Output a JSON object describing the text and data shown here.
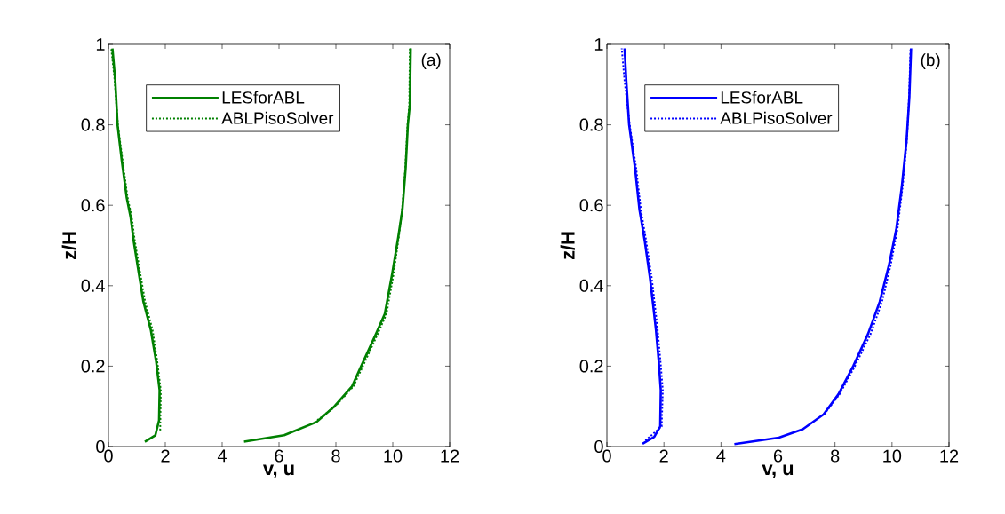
{
  "chart_data": [
    {
      "type": "line",
      "xlabel": "v, u",
      "ylabel": "z/H",
      "annotations": [
        "(a)"
      ],
      "xlim": [
        0,
        12
      ],
      "ylim": [
        0,
        1
      ],
      "xticks": [
        0,
        2,
        4,
        6,
        8,
        10,
        12
      ],
      "yticks": [
        0,
        0.2,
        0.4,
        0.6,
        0.8,
        1
      ],
      "legend": "top left",
      "series": [
        {
          "name": "LESforABL",
          "color": "#008000",
          "line_style": "solid",
          "x": [
            1.28,
            1.65,
            1.78,
            1.8,
            1.68,
            1.49,
            1.23,
            1.07,
            0.89,
            0.78,
            0.64,
            0.47,
            0.32,
            0.24,
            0.14
          ],
          "values": [
            0.012,
            0.028,
            0.065,
            0.14,
            0.21,
            0.29,
            0.36,
            0.43,
            0.51,
            0.57,
            0.62,
            0.71,
            0.8,
            0.91,
            0.99
          ]
        },
        {
          "name": "ABLPisoSolver",
          "color": "#008000",
          "line_style": "dotted",
          "x": [
            1.82,
            1.84,
            1.72,
            1.55,
            1.29,
            1.12,
            0.93,
            0.82,
            0.67,
            0.5,
            0.33,
            0.22,
            0.1
          ],
          "values": [
            0.04,
            0.14,
            0.21,
            0.29,
            0.36,
            0.43,
            0.51,
            0.57,
            0.62,
            0.71,
            0.8,
            0.91,
            0.99
          ]
        },
        {
          "color": "#008000",
          "line_style": "solid",
          "x": [
            4.77,
            6.18,
            7.32,
            7.95,
            8.57,
            8.89,
            9.41,
            9.72,
            9.98,
            10.19,
            10.34,
            10.45,
            10.53,
            10.6,
            10.63
          ],
          "values": [
            0.012,
            0.028,
            0.061,
            0.1,
            0.15,
            0.2,
            0.28,
            0.33,
            0.43,
            0.52,
            0.59,
            0.69,
            0.8,
            0.85,
            0.99
          ]
        },
        {
          "color": "#008000",
          "line_style": "dotted",
          "x": [
            7.25,
            7.98,
            8.62,
            8.95,
            9.47,
            9.78,
            10.03,
            10.21,
            10.33,
            10.44,
            10.52,
            10.58,
            10.6
          ],
          "values": [
            0.06,
            0.1,
            0.15,
            0.2,
            0.28,
            0.33,
            0.43,
            0.52,
            0.59,
            0.69,
            0.8,
            0.85,
            0.99
          ]
        }
      ]
    },
    {
      "type": "line",
      "xlabel": "v, u",
      "ylabel": "z/H",
      "annotations": [
        "(b)"
      ],
      "xlim": [
        0,
        12
      ],
      "ylim": [
        0,
        1
      ],
      "xticks": [
        0,
        2,
        4,
        6,
        8,
        10,
        12
      ],
      "yticks": [
        0,
        0.2,
        0.4,
        0.6,
        0.8,
        1
      ],
      "legend": "top left",
      "series": [
        {
          "name": "LESforABL",
          "color": "#0000ff",
          "line_style": "solid",
          "x": [
            1.25,
            1.66,
            1.87,
            1.89,
            1.82,
            1.72,
            1.64,
            1.51,
            1.33,
            1.14,
            0.99,
            0.78,
            0.68,
            0.62
          ],
          "values": [
            0.007,
            0.024,
            0.05,
            0.14,
            0.21,
            0.29,
            0.34,
            0.42,
            0.51,
            0.59,
            0.69,
            0.8,
            0.91,
            0.99
          ]
        },
        {
          "name": "ABLPisoSolver",
          "color": "#0000ff",
          "line_style": "dotted",
          "x": [
            1.35,
            1.92,
            1.96,
            1.88,
            1.78,
            1.7,
            1.57,
            1.38,
            1.19,
            1.03,
            0.8,
            0.62,
            0.52
          ],
          "values": [
            0.015,
            0.05,
            0.14,
            0.21,
            0.29,
            0.34,
            0.42,
            0.51,
            0.59,
            0.69,
            0.8,
            0.91,
            0.99
          ]
        },
        {
          "color": "#0000ff",
          "line_style": "solid",
          "x": [
            4.47,
            6.03,
            6.87,
            7.6,
            8.12,
            8.64,
            9.16,
            9.57,
            9.89,
            10.15,
            10.35,
            10.51,
            10.61,
            10.67
          ],
          "values": [
            0.006,
            0.022,
            0.043,
            0.08,
            0.13,
            0.2,
            0.28,
            0.36,
            0.45,
            0.54,
            0.65,
            0.76,
            0.87,
            0.99
          ]
        },
        {
          "color": "#0000ff",
          "line_style": "dotted",
          "x": [
            7.62,
            8.16,
            8.7,
            9.25,
            9.65,
            9.95,
            10.19,
            10.38,
            10.52,
            10.6,
            10.65
          ],
          "values": [
            0.08,
            0.13,
            0.2,
            0.28,
            0.36,
            0.45,
            0.54,
            0.65,
            0.76,
            0.87,
            0.99
          ]
        }
      ]
    }
  ]
}
